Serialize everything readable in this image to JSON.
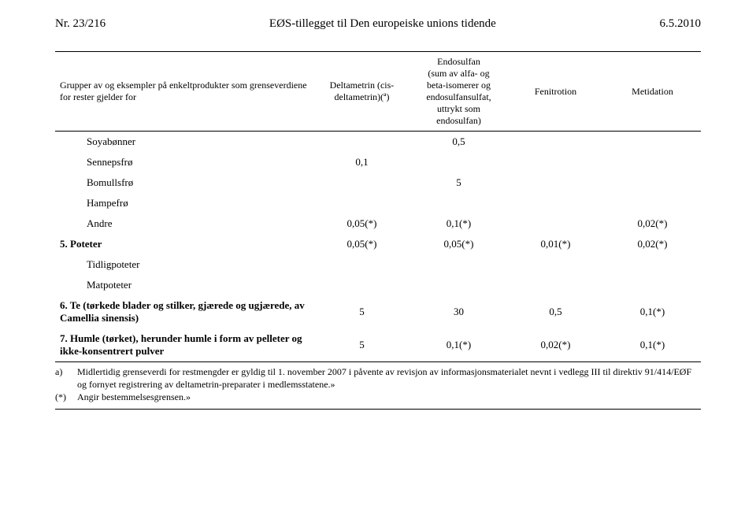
{
  "header": {
    "left": "Nr. 23/216",
    "center": "EØS-tillegget til Den europeiske unions tidende",
    "right": "6.5.2010"
  },
  "table": {
    "columns": {
      "c0": "Grupper av og eksempler på enkeltprodukter som grenseverdiene for rester gjelder for",
      "c1_line1": "Deltametrin (cis-",
      "c1_line2": "deltametrin)(ª)",
      "c2_line1": "Endosulfan",
      "c2_line2": "(sum av alfa- og",
      "c2_line3": "beta-isomerer og",
      "c2_line4": "endosulfansulfat,",
      "c2_line5": "uttrykt som",
      "c2_line6": "endosulfan)",
      "c3": "Fenitrotion",
      "c4": "Metidation"
    },
    "col_widths": [
      "40%",
      "15%",
      "15%",
      "15%",
      "15%"
    ],
    "rows": [
      {
        "type": "sub",
        "c0": "Soyabønner",
        "c1": "",
        "c2": "0,5",
        "c3": "",
        "c4": ""
      },
      {
        "type": "sub",
        "c0": "Sennepsfrø",
        "c1": "0,1",
        "c2": "",
        "c3": "",
        "c4": ""
      },
      {
        "type": "sub",
        "c0": "Bomullsfrø",
        "c1": "",
        "c2": "5",
        "c3": "",
        "c4": ""
      },
      {
        "type": "sub",
        "c0": "Hampefrø",
        "c1": "",
        "c2": "",
        "c3": "",
        "c4": ""
      },
      {
        "type": "sub",
        "c0": "Andre",
        "c1": "0,05(*)",
        "c2": "0,1(*)",
        "c3": "",
        "c4": "0,02(*)"
      },
      {
        "type": "section",
        "c0": "5.   Poteter",
        "c1": "0,05(*)",
        "c2": "0,05(*)",
        "c3": "0,01(*)",
        "c4": "0,02(*)",
        "bold": true
      },
      {
        "type": "sub",
        "c0": "Tidligpoteter",
        "c1": "",
        "c2": "",
        "c3": "",
        "c4": ""
      },
      {
        "type": "sub",
        "c0": "Matpoteter",
        "c1": "",
        "c2": "",
        "c3": "",
        "c4": ""
      },
      {
        "type": "section",
        "c0": "6.   Te (tørkede blader og stilker, gjærede og ugjærede, av Camellia sinensis)",
        "c1": "5",
        "c2": "30",
        "c3": "0,5",
        "c4": "0,1(*)",
        "bold": true
      },
      {
        "type": "section",
        "c0": "7.   Humle (tørket), herunder humle i form av pelleter og ikke-konsentrert pulver",
        "c1": "5",
        "c2": "0,1(*)",
        "c3": "0,02(*)",
        "c4": "0,1(*)",
        "bold": true,
        "last": true
      }
    ]
  },
  "footnotes": {
    "a_marker": "a)",
    "a_text": "Midlertidig grenseverdi for restmengder er gyldig til 1. november 2007 i påvente av revisjon av informasjonsmaterialet nevnt i vedlegg III til direktiv 91/414/EØF og fornyet registrering av deltametrin-preparater i medlemsstatene.»",
    "b_marker": "(*)",
    "b_text": "Angir bestemmelsesgrensen.»"
  }
}
